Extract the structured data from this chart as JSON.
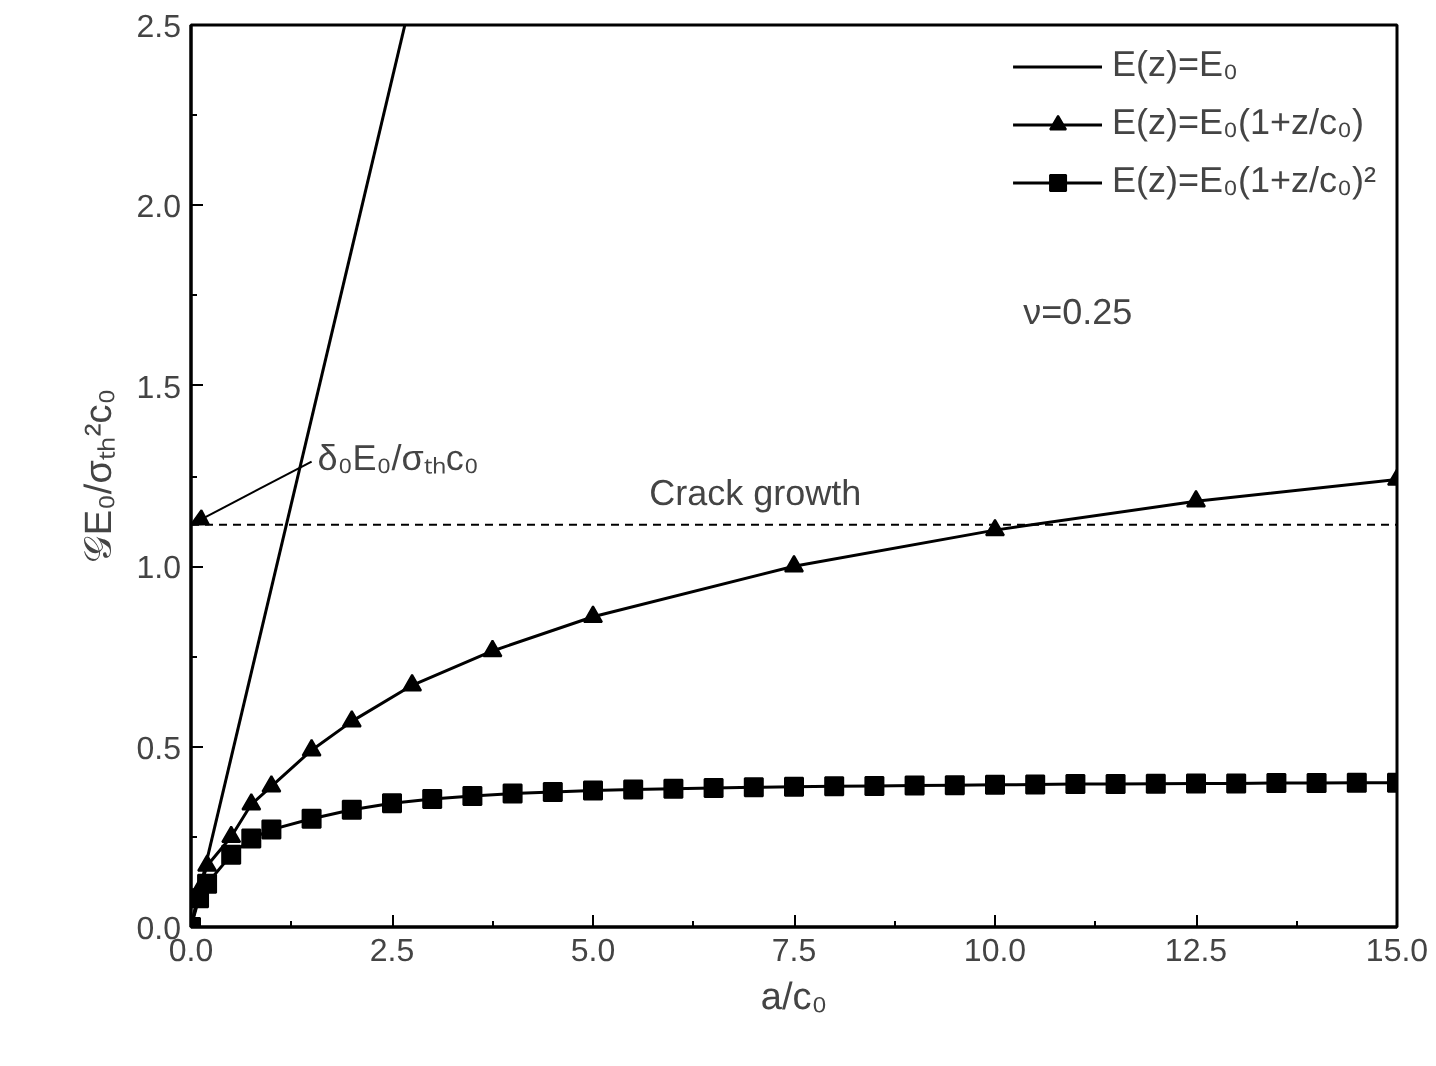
{
  "chart_data": {
    "type": "line",
    "xlabel": "a/c₀",
    "ylabel": "𝒢E₀/σₜₕ²c₀",
    "xlim": [
      0,
      15
    ],
    "ylim": [
      0,
      2.5
    ],
    "xticks": [
      {
        "value": 0,
        "label": "0.0"
      },
      2.5,
      {
        "value": 5,
        "label": "5.0"
      },
      7.5,
      {
        "value": 10,
        "label": "10.0"
      },
      12.5,
      {
        "value": 15,
        "label": "15.0"
      }
    ],
    "yticks": [
      {
        "value": 0,
        "label": "0.0"
      },
      0.5,
      {
        "value": 1,
        "label": "1.0"
      },
      1.5,
      {
        "value": 2,
        "label": "2.0"
      },
      2.5
    ],
    "grid": false,
    "legend": "top right",
    "line_style": "solid",
    "series": [
      {
        "name": "E(z)=E₀",
        "color": "#000000",
        "x": [
          0,
          2.66
        ],
        "values": [
          0,
          2.5
        ]
      },
      {
        "name": "E(z)=E₀(1+z/c₀)",
        "color": "#000000",
        "marker": "triangle",
        "x": [
          0,
          0.1,
          0.2,
          0.5,
          0.75,
          1,
          1.5,
          2,
          2.75,
          3.75,
          5,
          7.5,
          10,
          12.5,
          15
        ],
        "values": [
          0,
          0.1,
          0.17,
          0.25,
          0.34,
          0.39,
          0.49,
          0.57,
          0.67,
          0.765,
          0.86,
          1.0,
          1.1,
          1.18,
          1.24
        ]
      },
      {
        "name": "E(z)=E₀(1+z/c₀)²",
        "color": "#000000",
        "marker": "square",
        "x": [
          0,
          0.1,
          0.2,
          0.5,
          0.75,
          1,
          1.5,
          2,
          2.5,
          3,
          3.5,
          4,
          4.5,
          5,
          5.5,
          6,
          6.5,
          7,
          7.5,
          8,
          8.5,
          9,
          9.5,
          10,
          10.5,
          11,
          11.5,
          12,
          12.5,
          13,
          13.5,
          14,
          14.5,
          15
        ],
        "values": [
          0,
          0.08,
          0.12,
          0.2,
          0.245,
          0.27,
          0.3,
          0.325,
          0.343,
          0.355,
          0.363,
          0.37,
          0.374,
          0.378,
          0.381,
          0.383,
          0.385,
          0.387,
          0.389,
          0.39,
          0.391,
          0.392,
          0.393,
          0.394,
          0.395,
          0.396,
          0.396,
          0.397,
          0.398,
          0.398,
          0.399,
          0.399,
          0.4,
          0.4
        ]
      }
    ],
    "ref_lines": [
      {
        "axis": "y",
        "value": 1.115,
        "label": "Crack growth",
        "line_style": "dashed",
        "color": "#000000"
      }
    ],
    "annotations": [
      {
        "text": "δ₀E₀/σₜₕc₀",
        "x": 0,
        "y": 1.115
      },
      "ν=0.25"
    ]
  }
}
